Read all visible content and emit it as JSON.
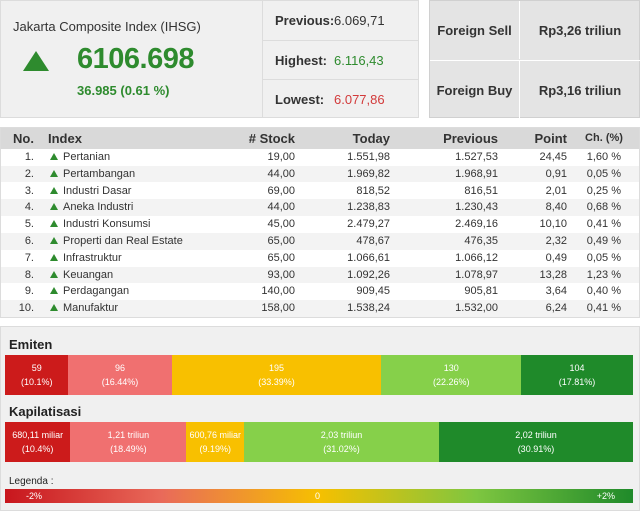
{
  "index": {
    "name": "Jakarta Composite Index (IHSG)",
    "value": "6106.698",
    "change": "36.985 (0.61 %)",
    "direction": "up",
    "up_color": "#2e8b2e"
  },
  "stats": {
    "previous": {
      "label": "Previous:",
      "value": "6.069,71"
    },
    "highest": {
      "label": "Highest:",
      "value": "6.116,43"
    },
    "lowest": {
      "label": "Lowest:",
      "value": "6.077,86"
    }
  },
  "foreign": {
    "sell": {
      "label": "Foreign Sell",
      "value": "Rp3,26 triliun"
    },
    "buy": {
      "label": "Foreign Buy",
      "value": "Rp3,16 triliun"
    }
  },
  "table": {
    "headers": {
      "no": "No.",
      "index": "Index",
      "stock": "# Stock",
      "today": "Today",
      "previous": "Previous",
      "point": "Point",
      "change": "Ch. (%)"
    },
    "rows": [
      {
        "no": "1.",
        "name": "Pertanian",
        "stock": "19,00",
        "today": "1.551,98",
        "previous": "1.527,53",
        "point": "24,45",
        "change": "1,60 %"
      },
      {
        "no": "2.",
        "name": "Pertambangan",
        "stock": "44,00",
        "today": "1.969,82",
        "previous": "1.968,91",
        "point": "0,91",
        "change": "0,05 %"
      },
      {
        "no": "3.",
        "name": "Industri Dasar",
        "stock": "69,00",
        "today": "818,52",
        "previous": "816,51",
        "point": "2,01",
        "change": "0,25 %"
      },
      {
        "no": "4.",
        "name": "Aneka Industri",
        "stock": "44,00",
        "today": "1.238,83",
        "previous": "1.230,43",
        "point": "8,40",
        "change": "0,68 %"
      },
      {
        "no": "5.",
        "name": "Industri Konsumsi",
        "stock": "45,00",
        "today": "2.479,27",
        "previous": "2.469,16",
        "point": "10,10",
        "change": "0,41 %"
      },
      {
        "no": "6.",
        "name": "Properti dan Real Estate",
        "stock": "65,00",
        "today": "478,67",
        "previous": "476,35",
        "point": "2,32",
        "change": "0,49 %"
      },
      {
        "no": "7.",
        "name": "Infrastruktur",
        "stock": "65,00",
        "today": "1.066,61",
        "previous": "1.066,12",
        "point": "0,49",
        "change": "0,05 %"
      },
      {
        "no": "8.",
        "name": "Keuangan",
        "stock": "93,00",
        "today": "1.092,26",
        "previous": "1.078,97",
        "point": "13,28",
        "change": "1,23 %"
      },
      {
        "no": "9.",
        "name": "Perdagangan",
        "stock": "140,00",
        "today": "909,45",
        "previous": "905,81",
        "point": "3,64",
        "change": "0,40 %"
      },
      {
        "no": "10.",
        "name": "Manufaktur",
        "stock": "158,00",
        "today": "1.538,24",
        "previous": "1.532,00",
        "point": "6,24",
        "change": "0,41 %"
      }
    ]
  },
  "emiten": {
    "label": "Emiten",
    "segments": [
      {
        "value": "59",
        "pct": "(10.1%)",
        "share": 10.1,
        "color": "#cc1b1b"
      },
      {
        "value": "96",
        "pct": "(16.44%)",
        "share": 16.44,
        "color": "#f07070"
      },
      {
        "value": "195",
        "pct": "(33.39%)",
        "share": 33.39,
        "color": "#f8c000"
      },
      {
        "value": "130",
        "pct": "(22.26%)",
        "share": 22.26,
        "color": "#86d04a"
      },
      {
        "value": "104",
        "pct": "(17.81%)",
        "share": 17.81,
        "color": "#1f8a2a"
      }
    ]
  },
  "kapitalisasi": {
    "label": "Kapilatisasi",
    "segments": [
      {
        "value": "680,11 miliar",
        "pct": "(10.4%)",
        "share": 10.4,
        "color": "#cc1b1b"
      },
      {
        "value": "1,21 triliun",
        "pct": "(18.49%)",
        "share": 18.49,
        "color": "#f07070"
      },
      {
        "value": "600,76 miliar",
        "pct": "(9.19%)",
        "share": 9.19,
        "color": "#f8c000"
      },
      {
        "value": "2,03 triliun",
        "pct": "(31.02%)",
        "share": 31.02,
        "color": "#86d04a"
      },
      {
        "value": "2,02 triliun",
        "pct": "(30.91%)",
        "share": 30.91,
        "color": "#1f8a2a"
      }
    ]
  },
  "legend": {
    "label": "Legenda :",
    "min": "-2%",
    "mid": "0",
    "max": "+2%"
  }
}
